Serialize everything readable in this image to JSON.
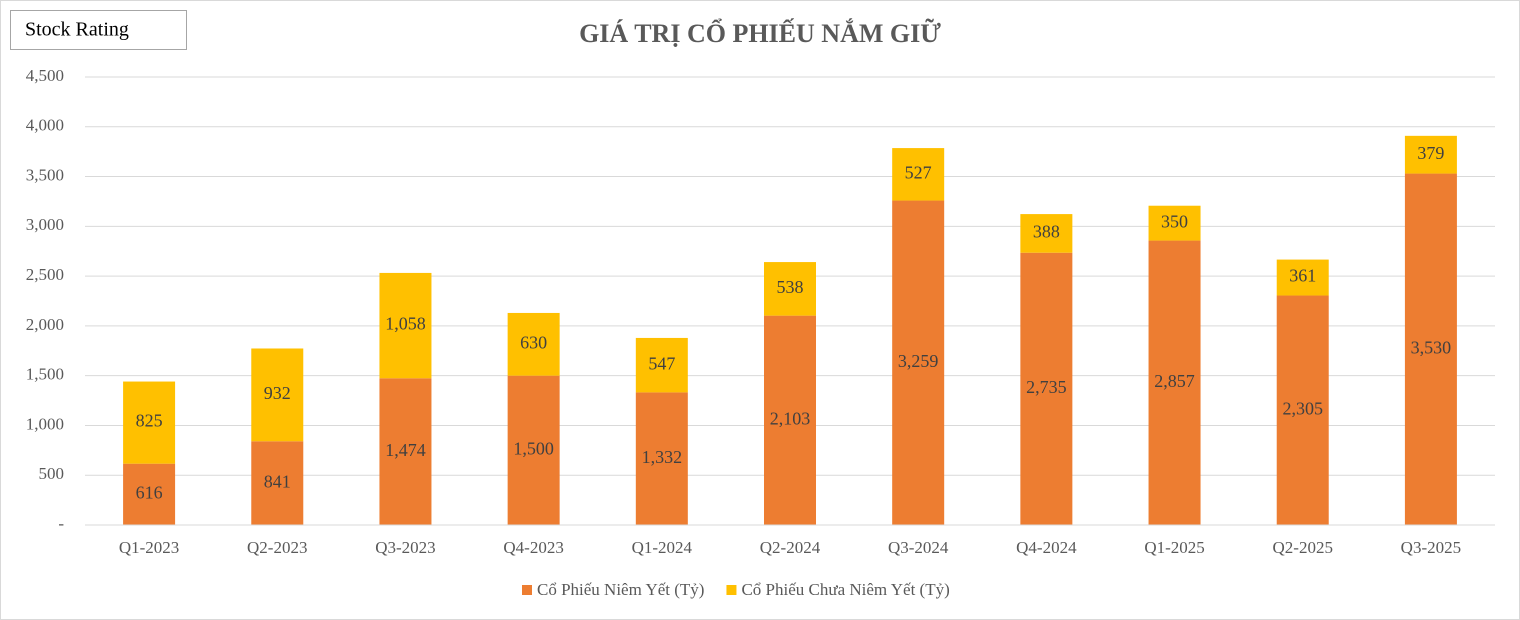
{
  "chart_data": {
    "type": "stacked_bar",
    "title": "GIÁ TRỊ CỔ PHIẾU NẮM GIỮ",
    "annotation": "Stock Rating",
    "categories": [
      "Q1-2023",
      "Q2-2023",
      "Q3-2023",
      "Q4-2023",
      "Q1-2024",
      "Q2-2024",
      "Q3-2024",
      "Q4-2024",
      "Q1-2025",
      "Q2-2025",
      "Q3-2025"
    ],
    "series": [
      {
        "name": "Cổ Phiếu Niêm Yết (Tỷ)",
        "color": "#ED7D31",
        "values": [
          616,
          841,
          1474,
          1500,
          1332,
          2103,
          3259,
          2735,
          2857,
          2305,
          3530
        ],
        "value_labels": [
          "616",
          "841",
          "1,474",
          "1,500",
          "1,332",
          "2,103",
          "3,259",
          "2,735",
          "2,857",
          "2,305",
          "3,530"
        ]
      },
      {
        "name": "Cổ Phiếu Chưa Niêm Yết (Tỷ)",
        "color": "#FFC000",
        "values": [
          825,
          932,
          1058,
          630,
          547,
          538,
          527,
          388,
          350,
          361,
          379
        ],
        "value_labels": [
          "825",
          "932",
          "1,058",
          "630",
          "547",
          "538",
          "527",
          "388",
          "350",
          "361",
          "379"
        ]
      }
    ],
    "ylim": [
      0,
      4500
    ],
    "yticks": [
      {
        "value": 0,
        "label": "-"
      },
      500,
      {
        "value": 1000,
        "label": "1,000"
      },
      {
        "value": 1500,
        "label": "1,500"
      },
      {
        "value": 2000,
        "label": "2,000"
      },
      {
        "value": 2500,
        "label": "2,500"
      },
      {
        "value": 3000,
        "label": "3,000"
      },
      {
        "value": 3500,
        "label": "3,500"
      },
      {
        "value": 4000,
        "label": "4,000"
      },
      {
        "value": 4500,
        "label": "4,500"
      }
    ],
    "grid": true,
    "legend": "bottom"
  }
}
